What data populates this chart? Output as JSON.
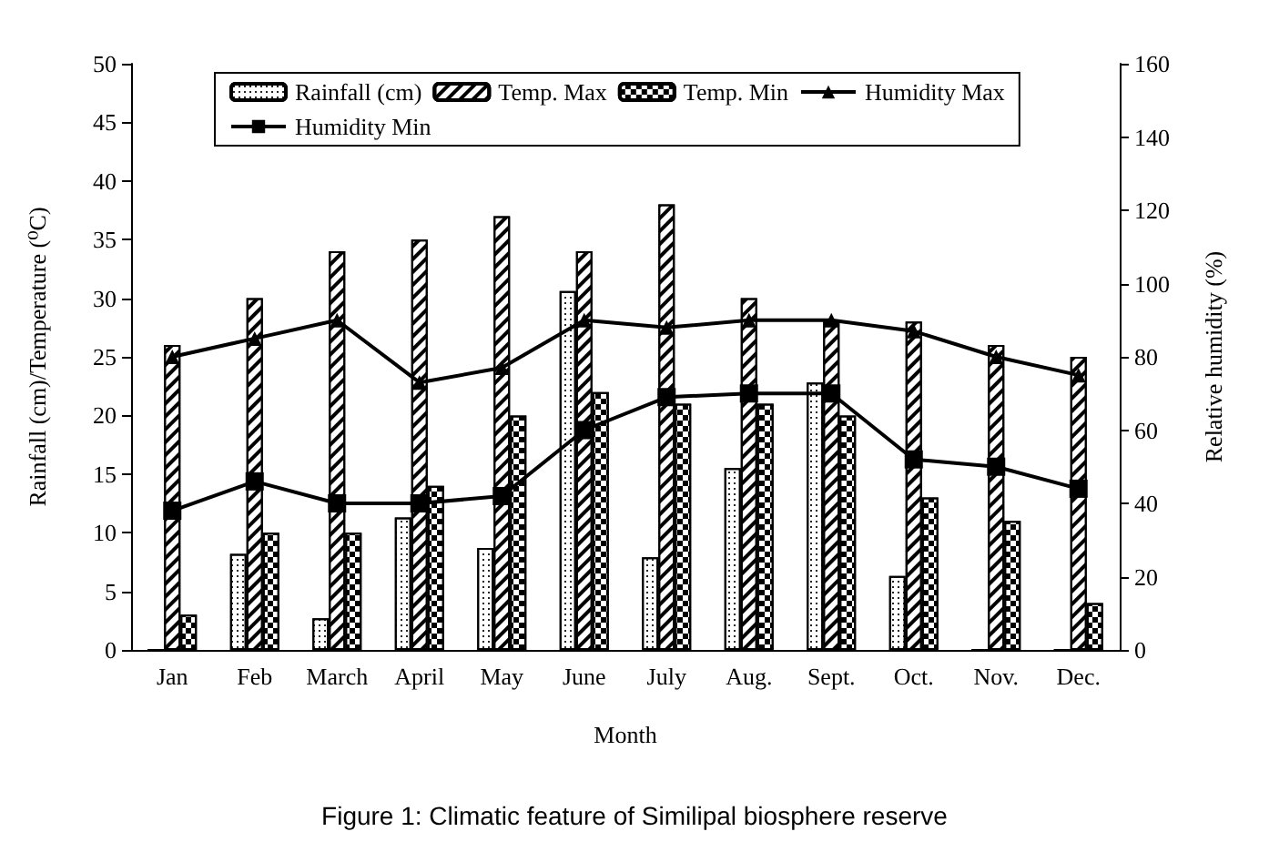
{
  "chart_data": {
    "type": "bar",
    "title": "Figure 1: Climatic feature of Similipal biosphere reserve",
    "xlabel": "Month",
    "ylabel": "Rainfall (cm)/Temperature (⁰C)",
    "y2label": "Relative humidity (%)",
    "categories": [
      "Jan",
      "Feb",
      "March",
      "April",
      "May",
      "June",
      "July",
      "Aug.",
      "Sept.",
      "Oct.",
      "Nov.",
      "Dec."
    ],
    "series": [
      {
        "name": "Rainfall (cm)",
        "color": "#ffffff",
        "values": [
          0,
          8.2,
          2.7,
          11.3,
          8.7,
          30.6,
          7.9,
          15.5,
          22.8,
          6.3,
          0,
          0
        ]
      },
      {
        "name": "Temp. Max",
        "color": "#ffffff",
        "values": [
          26,
          30,
          34,
          35,
          37,
          34,
          38,
          30,
          28,
          28,
          26,
          25
        ]
      },
      {
        "name": "Temp. Min",
        "color": "#ffffff",
        "values": [
          3,
          10,
          10,
          14,
          20,
          22,
          21,
          21,
          20,
          13,
          11,
          4
        ]
      },
      {
        "name": "Humidity Max",
        "type": "line",
        "axis": "y2",
        "marker": "triangle",
        "color": "#000000",
        "values": [
          80,
          85,
          90,
          73,
          77,
          90,
          88,
          90,
          90,
          87,
          80,
          75
        ]
      },
      {
        "name": "Humidity Min",
        "type": "line",
        "axis": "y2",
        "marker": "square",
        "color": "#000000",
        "values": [
          38,
          46,
          40,
          40,
          42,
          60,
          69,
          70,
          70,
          52,
          50,
          44
        ]
      }
    ],
    "ylim": [
      0,
      50
    ],
    "yticks": [
      0,
      5,
      10,
      15,
      20,
      25,
      30,
      35,
      40,
      45,
      50
    ],
    "y2lim": [
      0,
      160
    ],
    "y2ticks": [
      0,
      20,
      40,
      60,
      80,
      100,
      120,
      140,
      160
    ],
    "legend": "top",
    "grid": false,
    "line_style": "solid"
  }
}
